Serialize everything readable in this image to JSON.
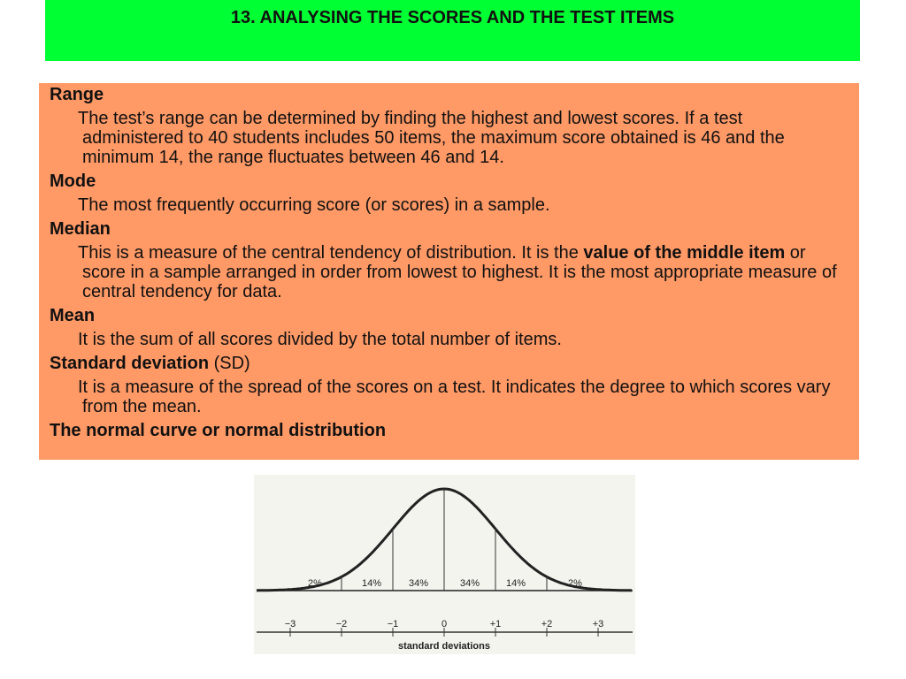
{
  "header": {
    "title": "13. ANALYSING THE SCORES AND THE TEST ITEMS"
  },
  "sections": [
    {
      "heading": [
        {
          "text": "Range",
          "bold": true
        }
      ],
      "body": [
        {
          "text": "The test’s range can be determined by finding the highest and lowest scores. If a test administered to 40 students includes 50 items, the maximum score obtained is 46 and the minimum 14,  the range fluctuates between 46 and 14.",
          "bold": false
        }
      ]
    },
    {
      "heading": [
        {
          "text": "Mode",
          "bold": true
        }
      ],
      "body": [
        {
          "text": "The most frequently occurring score (or scores) in a sample.",
          "bold": false
        }
      ]
    },
    {
      "heading": [
        {
          "text": "Median",
          "bold": true
        }
      ],
      "body": [
        {
          "text": "This is a measure of the central tendency of distribution. It is the ",
          "bold": false
        },
        {
          "text": "value of the middle item",
          "bold": true
        },
        {
          "text": " or score in a sample arranged in order from lowest to highest. It is the most appropriate measure of central tendency for data.",
          "bold": false
        }
      ]
    },
    {
      "heading": [
        {
          "text": "Mean",
          "bold": true
        }
      ],
      "body": [
        {
          "text": "It is the sum of all scores divided by the total number of items.",
          "bold": false
        }
      ]
    },
    {
      "heading": [
        {
          "text": "Standard deviation",
          "bold": true
        },
        {
          "text": " (SD)",
          "bold": false
        }
      ],
      "body": [
        {
          "text": "It is a measure of the spread of the scores on a test. It indicates the degree to which scores vary from the mean.",
          "bold": false
        }
      ]
    },
    {
      "heading": [
        {
          "text": "The normal curve or normal distribution",
          "bold": true
        }
      ],
      "body": []
    }
  ],
  "figure": {
    "percent_labels": [
      "2%",
      "14%",
      "34%",
      "34%",
      "14%",
      "2%"
    ],
    "sd_labels": [
      "−3",
      "−2",
      "−1",
      "0",
      "+1",
      "+2",
      "+3"
    ],
    "axis_title": "standard deviations"
  }
}
